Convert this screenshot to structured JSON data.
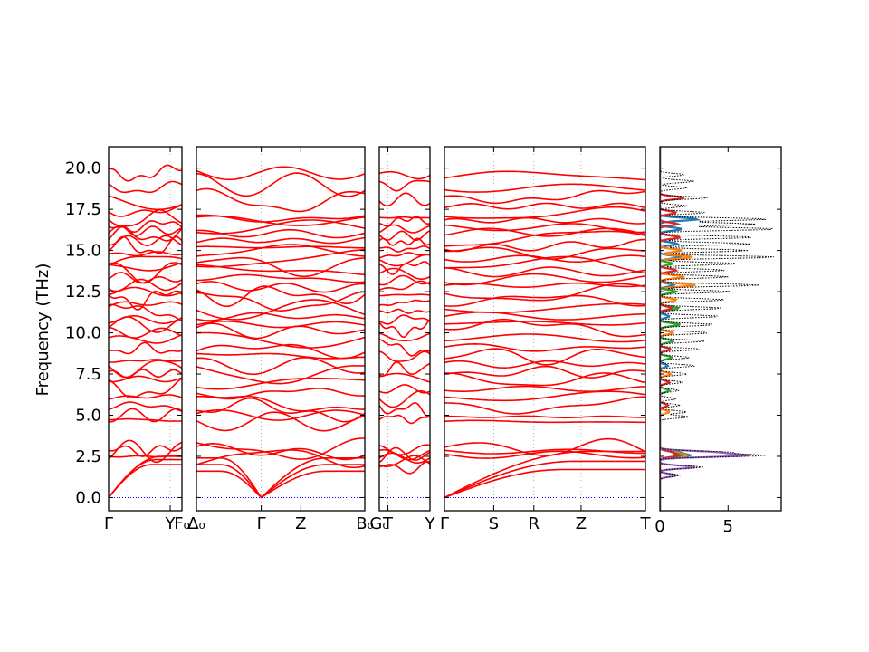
{
  "chart_data": {
    "type": "line",
    "ylabel": "Frequency (THz)",
    "ylim": [
      -0.8,
      21.3
    ],
    "y_ticks": [
      0.0,
      2.5,
      5.0,
      7.5,
      10.0,
      12.5,
      15.0,
      17.5,
      20.0
    ],
    "y_tick_labels": [
      "0.0",
      "2.5",
      "5.0",
      "7.5",
      "10.0",
      "12.5",
      "15.0",
      "17.5",
      "20.0"
    ],
    "band_color": "#ff0000",
    "zero_line_color": "#0000ff",
    "band_panels": [
      {
        "id": "panel-1",
        "x_ticks": [
          {
            "pos": 0.0,
            "label": "Γ"
          },
          {
            "pos": 0.84,
            "label": "Y"
          },
          {
            "pos": 1.0,
            "label": "F₀"
          }
        ],
        "acoustic_end": [
          2.0,
          2.3,
          2.5
        ],
        "acoustic_shape": "linear",
        "optic_base": [
          2.5,
          2.8,
          2.9,
          4.7,
          5.0,
          5.5,
          6.1,
          6.6,
          7.2,
          7.5,
          7.9,
          8.3,
          9.0,
          9.6,
          10.0,
          10.5,
          10.8,
          11.2,
          11.7,
          12.1,
          12.5,
          12.9,
          13.3,
          13.7,
          14.0,
          14.4,
          14.8,
          15.2,
          15.6,
          15.9,
          16.2,
          16.5,
          16.9,
          17.4,
          18.0,
          18.8,
          19.7
        ],
        "wiggle": 0.55
      },
      {
        "id": "panel-2",
        "x_ticks": [
          {
            "pos": 0.0,
            "label": "Δ₀"
          },
          {
            "pos": 0.385,
            "label": "Γ"
          },
          {
            "pos": 0.62,
            "label": "Z"
          },
          {
            "pos": 1.0,
            "label": "B₀"
          }
        ],
        "acoustic_end": [
          1.6,
          2.0,
          2.4
        ],
        "acoustic_shape": "vee",
        "optic_base": [
          2.5,
          2.8,
          2.9,
          4.6,
          5.0,
          5.3,
          5.8,
          6.3,
          7.0,
          7.5,
          8.0,
          8.6,
          9.0,
          9.6,
          10.1,
          10.5,
          11.0,
          11.4,
          11.9,
          12.3,
          12.8,
          13.3,
          13.8,
          14.1,
          14.5,
          14.8,
          15.2,
          15.6,
          16.0,
          16.4,
          16.8,
          17.1,
          18.0,
          19.0,
          19.7
        ],
        "wiggle": 0.6
      },
      {
        "id": "panel-3",
        "x_ticks": [
          {
            "pos": 0.0,
            "label": "G₀"
          },
          {
            "pos": 0.17,
            "label": "T"
          },
          {
            "pos": 1.0,
            "label": "Y"
          }
        ],
        "acoustic_end": [
          2.4,
          2.6,
          2.9
        ],
        "acoustic_shape": "flat",
        "optic_base": [
          1.8,
          2.2,
          2.6,
          4.8,
          5.4,
          6.0,
          6.6,
          7.2,
          7.8,
          8.5,
          9.1,
          9.7,
          10.3,
          10.8,
          11.3,
          11.8,
          12.3,
          12.8,
          13.2,
          13.6,
          14.0,
          14.4,
          14.7,
          15.1,
          15.5,
          15.9,
          16.3,
          16.7,
          17.0,
          18.1,
          19.0,
          19.6
        ],
        "wiggle": 0.4
      },
      {
        "id": "panel-4",
        "x_ticks": [
          {
            "pos": 0.0,
            "label": "Γ"
          },
          {
            "pos": 0.245,
            "label": "S"
          },
          {
            "pos": 0.445,
            "label": "R"
          },
          {
            "pos": 0.68,
            "label": "Z"
          },
          {
            "pos": 1.0,
            "label": "T"
          }
        ],
        "acoustic_end": [
          1.7,
          2.2,
          2.8
        ],
        "acoustic_shape": "linear",
        "optic_base": [
          2.6,
          2.8,
          3.0,
          4.6,
          4.9,
          5.6,
          6.1,
          6.6,
          7.1,
          7.6,
          8.1,
          8.6,
          9.1,
          9.7,
          10.2,
          10.6,
          11.0,
          11.5,
          12.0,
          12.4,
          12.9,
          13.3,
          13.7,
          14.1,
          14.5,
          14.9,
          15.3,
          15.7,
          16.1,
          16.4,
          16.8,
          17.2,
          17.7,
          18.3,
          18.8,
          19.5
        ],
        "wiggle": 0.5
      }
    ],
    "dos_panel": {
      "xlim": [
        0,
        8.9
      ],
      "x_ticks": [
        0,
        5
      ],
      "x_tick_labels": [
        "0",
        "5"
      ],
      "total_color": "#000000",
      "partial_colors": [
        "#1f77b4",
        "#ff7f0e",
        "#2ca02c",
        "#d62728",
        "#9467bd"
      ],
      "total_peaks": [
        [
          2.55,
          7.6
        ],
        [
          2.75,
          5.0
        ],
        [
          1.85,
          3.2
        ],
        [
          1.35,
          1.5
        ],
        [
          4.9,
          2.2
        ],
        [
          5.2,
          2.0
        ],
        [
          5.6,
          1.5
        ],
        [
          6.0,
          1.2
        ],
        [
          6.5,
          1.4
        ],
        [
          7.0,
          1.7
        ],
        [
          7.5,
          2.0
        ],
        [
          8.0,
          2.6
        ],
        [
          8.5,
          2.2
        ],
        [
          9.0,
          3.0
        ],
        [
          9.5,
          3.4
        ],
        [
          10.0,
          3.6
        ],
        [
          10.5,
          4.0
        ],
        [
          11.0,
          4.4
        ],
        [
          11.5,
          4.6
        ],
        [
          12.0,
          4.8
        ],
        [
          12.5,
          5.2
        ],
        [
          12.9,
          7.3
        ],
        [
          13.4,
          5.0
        ],
        [
          13.8,
          4.8
        ],
        [
          14.2,
          5.8
        ],
        [
          14.6,
          8.5
        ],
        [
          15.0,
          6.5
        ],
        [
          15.4,
          6.7
        ],
        [
          15.8,
          7.0
        ],
        [
          16.3,
          8.7
        ],
        [
          16.6,
          7.0
        ],
        [
          16.9,
          8.0
        ],
        [
          17.3,
          3.4
        ],
        [
          17.7,
          2.0
        ],
        [
          18.2,
          3.5
        ],
        [
          18.8,
          2.0
        ],
        [
          19.2,
          2.5
        ],
        [
          19.6,
          1.8
        ]
      ],
      "partial_peaks": [
        [
          [
            2.55,
            2.1
          ],
          [
            2.75,
            1.3
          ],
          [
            12.9,
            1.0
          ],
          [
            14.6,
            1.5
          ],
          [
            16.9,
            2.8
          ],
          [
            16.3,
            1.6
          ],
          [
            15.4,
            1.3
          ],
          [
            11.0,
            0.7
          ],
          [
            8.0,
            0.6
          ]
        ],
        [
          [
            2.55,
            1.9
          ],
          [
            2.75,
            1.1
          ],
          [
            12.9,
            2.6
          ],
          [
            13.4,
            1.8
          ],
          [
            14.6,
            2.4
          ],
          [
            15.0,
            1.6
          ],
          [
            12.0,
            1.2
          ],
          [
            10.0,
            1.0
          ],
          [
            7.5,
            0.8
          ],
          [
            5.2,
            0.7
          ]
        ],
        [
          [
            2.55,
            1.5
          ],
          [
            2.75,
            0.9
          ],
          [
            10.5,
            1.5
          ],
          [
            11.5,
            1.4
          ],
          [
            12.5,
            1.2
          ],
          [
            9.5,
            1.0
          ],
          [
            8.5,
            0.9
          ],
          [
            6.5,
            0.7
          ],
          [
            14.2,
            0.9
          ]
        ],
        [
          [
            2.55,
            1.3
          ],
          [
            2.75,
            0.8
          ],
          [
            18.2,
            1.8
          ],
          [
            17.3,
            1.2
          ],
          [
            16.6,
            1.3
          ],
          [
            15.8,
            1.5
          ],
          [
            13.8,
            1.2
          ],
          [
            11.5,
            0.9
          ],
          [
            9.0,
            0.8
          ],
          [
            7.0,
            0.7
          ],
          [
            5.6,
            0.6
          ]
        ],
        [
          [
            2.55,
            6.2
          ],
          [
            2.75,
            3.8
          ],
          [
            1.85,
            2.6
          ],
          [
            1.35,
            1.2
          ]
        ]
      ]
    }
  }
}
